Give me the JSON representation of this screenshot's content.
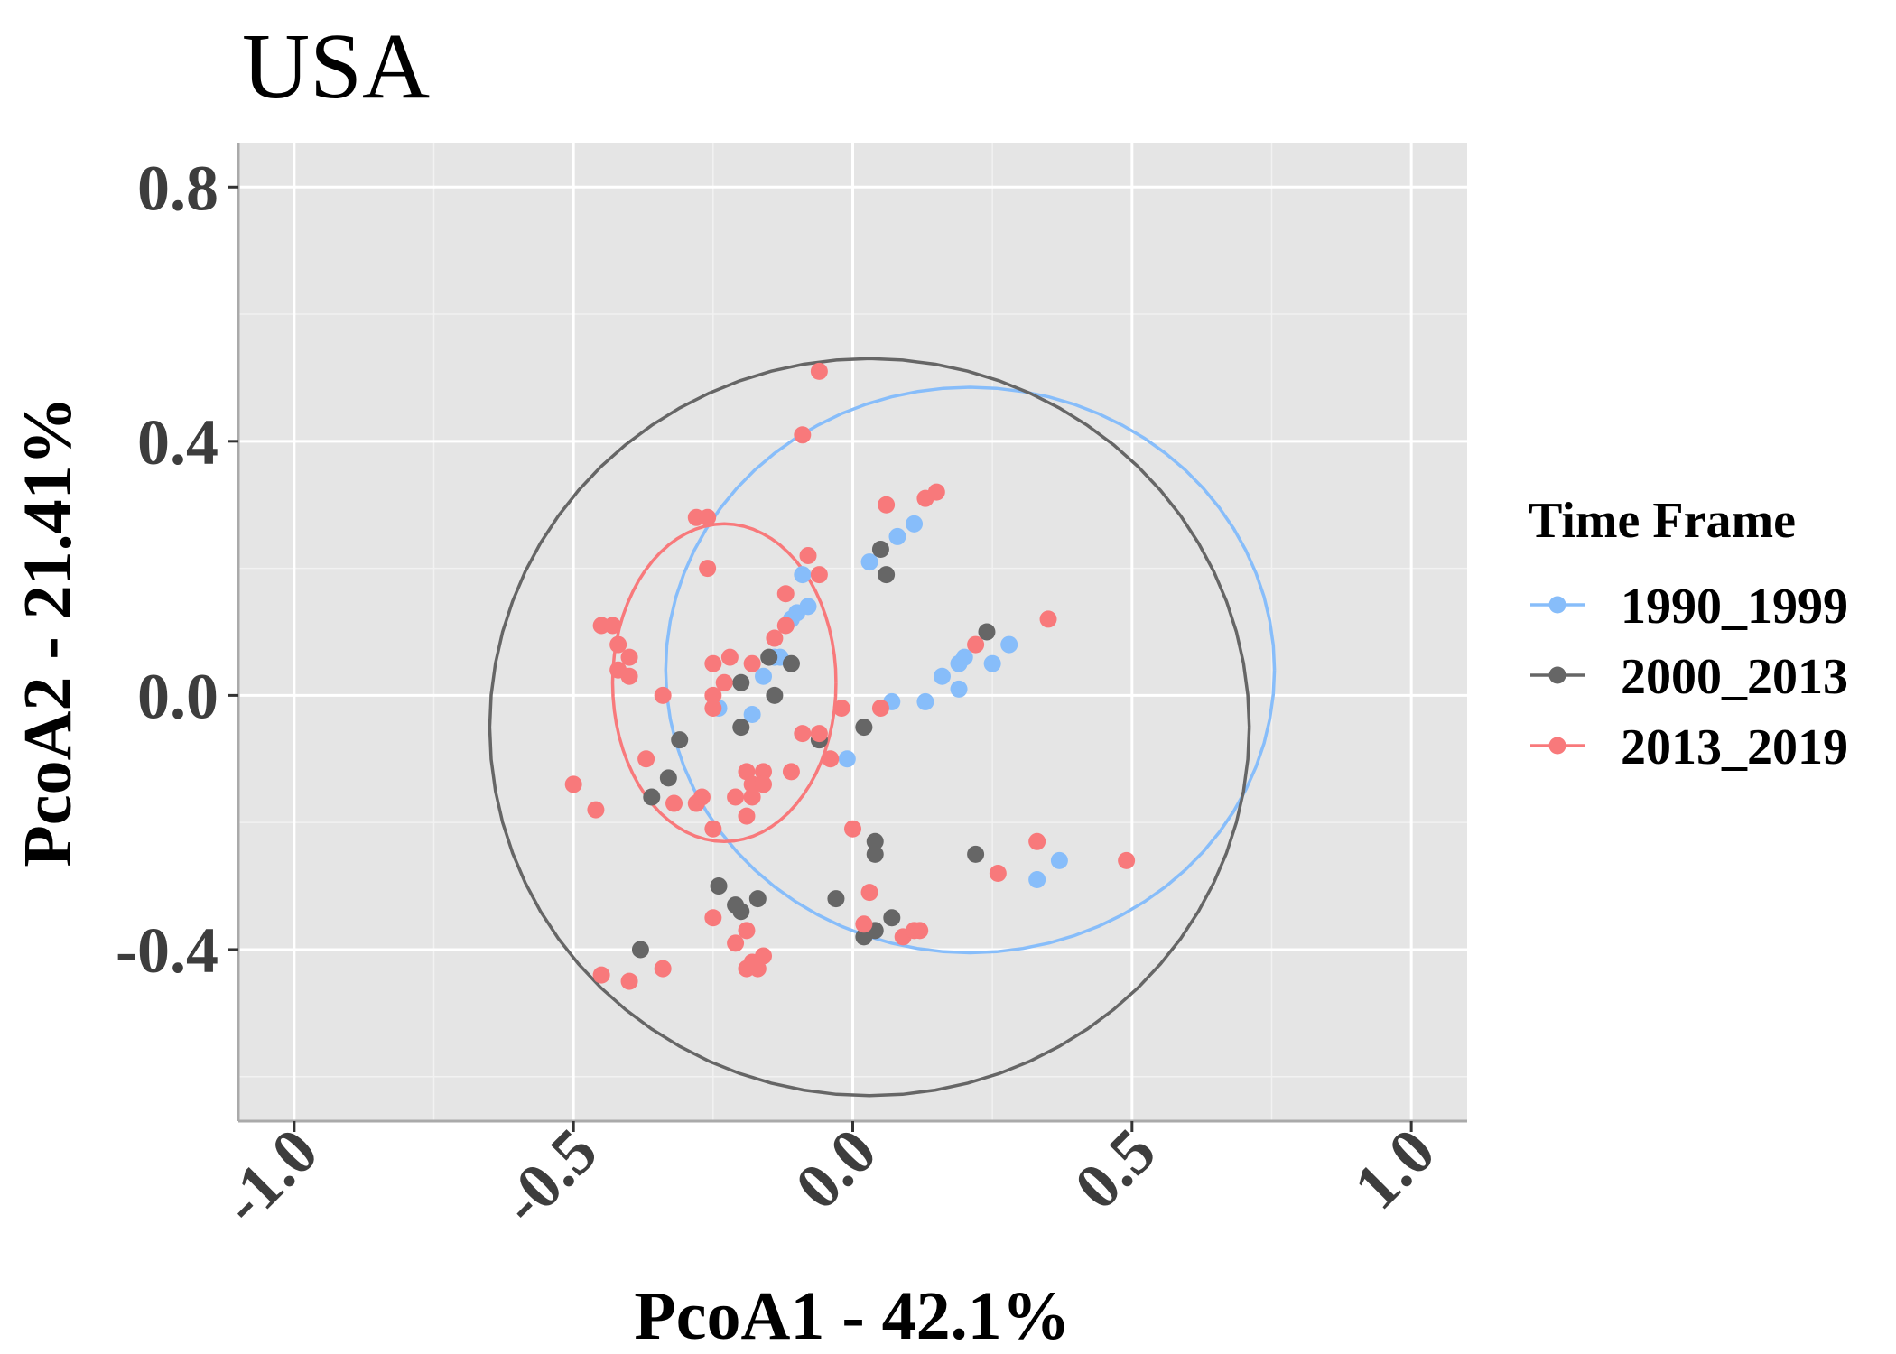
{
  "chart_data": {
    "type": "scatter",
    "title": "USA",
    "xlabel": "PcoA1 - 42.1%",
    "ylabel": "PcoA2 - 21.41%",
    "xlim": [
      -1.1,
      1.1
    ],
    "ylim": [
      -0.67,
      0.87
    ],
    "x_ticks": [
      -1.0,
      -0.5,
      0.0,
      0.5,
      1.0
    ],
    "x_tick_labels": [
      "-1.0",
      "-0.5",
      "0.0",
      "0.5",
      "1.0"
    ],
    "y_ticks": [
      -0.4,
      0.0,
      0.4,
      0.8
    ],
    "y_tick_labels": [
      "-0.4",
      "0.0",
      "0.4",
      "0.8"
    ],
    "grid": true,
    "panel_background": "#e5e5e5",
    "legend": {
      "title": "Time Frame",
      "position": "right"
    },
    "series": [
      {
        "name": "1990_1999",
        "color": "#87bdfa",
        "ellipse": {
          "cx": 0.21,
          "cy": 0.04,
          "rx": 0.545,
          "ry": 0.445
        },
        "points": [
          [
            0.03,
            0.21
          ],
          [
            0.08,
            0.25
          ],
          [
            0.11,
            0.27
          ],
          [
            0.07,
            -0.01
          ],
          [
            0.13,
            -0.01
          ],
          [
            0.16,
            0.03
          ],
          [
            0.19,
            0.05
          ],
          [
            0.19,
            0.01
          ],
          [
            0.25,
            0.05
          ],
          [
            0.28,
            0.08
          ],
          [
            -0.09,
            0.19
          ],
          [
            -0.1,
            0.13
          ],
          [
            -0.11,
            0.12
          ],
          [
            -0.13,
            0.06
          ],
          [
            -0.14,
            0.06
          ],
          [
            -0.16,
            0.03
          ],
          [
            -0.18,
            -0.03
          ],
          [
            -0.24,
            -0.02
          ],
          [
            -0.01,
            -0.1
          ],
          [
            0.33,
            -0.29
          ],
          [
            0.37,
            -0.26
          ],
          [
            -0.08,
            0.14
          ],
          [
            0.2,
            0.06
          ]
        ]
      },
      {
        "name": "2000_2013",
        "color": "#666666",
        "ellipse": {
          "cx": 0.03,
          "cy": -0.05,
          "rx": 0.68,
          "ry": 0.58
        },
        "points": [
          [
            0.05,
            0.23
          ],
          [
            0.06,
            0.19
          ],
          [
            0.24,
            0.1
          ],
          [
            -0.11,
            0.05
          ],
          [
            -0.15,
            0.06
          ],
          [
            -0.2,
            0.02
          ],
          [
            -0.14,
            0.0
          ],
          [
            -0.2,
            -0.05
          ],
          [
            -0.06,
            -0.07
          ],
          [
            0.02,
            -0.05
          ],
          [
            -0.31,
            -0.07
          ],
          [
            -0.33,
            -0.13
          ],
          [
            -0.36,
            -0.16
          ],
          [
            -0.24,
            -0.3
          ],
          [
            -0.21,
            -0.33
          ],
          [
            -0.2,
            -0.34
          ],
          [
            -0.17,
            -0.32
          ],
          [
            -0.38,
            -0.4
          ],
          [
            -0.03,
            -0.32
          ],
          [
            0.04,
            -0.23
          ],
          [
            0.04,
            -0.25
          ],
          [
            0.22,
            -0.25
          ],
          [
            0.02,
            -0.38
          ],
          [
            0.04,
            -0.37
          ],
          [
            0.07,
            -0.35
          ]
        ]
      },
      {
        "name": "2013_2019",
        "color": "#f8797b",
        "ellipse": {
          "cx": -0.23,
          "cy": 0.02,
          "rx": 0.2,
          "ry": 0.25
        },
        "points": [
          [
            -0.06,
            0.51
          ],
          [
            -0.09,
            0.41
          ],
          [
            -0.28,
            0.28
          ],
          [
            -0.26,
            0.28
          ],
          [
            -0.26,
            0.2
          ],
          [
            -0.08,
            0.22
          ],
          [
            -0.06,
            0.19
          ],
          [
            -0.12,
            0.16
          ],
          [
            -0.14,
            0.09
          ],
          [
            -0.12,
            0.11
          ],
          [
            -0.45,
            0.11
          ],
          [
            -0.43,
            0.11
          ],
          [
            -0.42,
            0.08
          ],
          [
            -0.4,
            0.06
          ],
          [
            -0.42,
            0.04
          ],
          [
            -0.4,
            0.03
          ],
          [
            -0.25,
            0.05
          ],
          [
            -0.22,
            0.06
          ],
          [
            -0.23,
            0.02
          ],
          [
            -0.25,
            0.0
          ],
          [
            -0.18,
            0.05
          ],
          [
            -0.34,
            0.0
          ],
          [
            -0.25,
            -0.02
          ],
          [
            -0.09,
            -0.06
          ],
          [
            -0.06,
            -0.06
          ],
          [
            -0.04,
            -0.1
          ],
          [
            -0.02,
            -0.02
          ],
          [
            0.05,
            -0.02
          ],
          [
            -0.5,
            -0.14
          ],
          [
            -0.46,
            -0.18
          ],
          [
            -0.37,
            -0.1
          ],
          [
            -0.32,
            -0.17
          ],
          [
            -0.28,
            -0.17
          ],
          [
            -0.27,
            -0.16
          ],
          [
            -0.25,
            -0.21
          ],
          [
            -0.21,
            -0.16
          ],
          [
            -0.19,
            -0.12
          ],
          [
            -0.18,
            -0.16
          ],
          [
            -0.19,
            -0.19
          ],
          [
            -0.16,
            -0.12
          ],
          [
            -0.11,
            -0.12
          ],
          [
            -0.18,
            -0.14
          ],
          [
            -0.16,
            -0.14
          ],
          [
            -0.25,
            -0.35
          ],
          [
            -0.21,
            -0.39
          ],
          [
            -0.19,
            -0.37
          ],
          [
            -0.18,
            -0.42
          ],
          [
            -0.16,
            -0.41
          ],
          [
            -0.17,
            -0.43
          ],
          [
            -0.19,
            -0.43
          ],
          [
            -0.45,
            -0.44
          ],
          [
            -0.4,
            -0.45
          ],
          [
            -0.34,
            -0.43
          ],
          [
            0.0,
            -0.21
          ],
          [
            0.03,
            -0.31
          ],
          [
            0.02,
            -0.36
          ],
          [
            0.09,
            -0.38
          ],
          [
            0.11,
            -0.37
          ],
          [
            0.12,
            -0.37
          ],
          [
            0.06,
            0.3
          ],
          [
            0.13,
            0.31
          ],
          [
            0.15,
            0.32
          ],
          [
            0.22,
            0.08
          ],
          [
            0.35,
            0.12
          ],
          [
            0.26,
            -0.28
          ],
          [
            0.33,
            -0.23
          ],
          [
            0.49,
            -0.26
          ]
        ]
      }
    ]
  }
}
